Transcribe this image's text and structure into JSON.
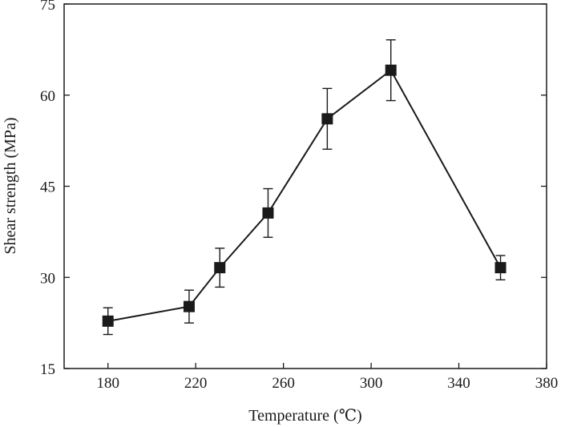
{
  "chart_data": {
    "type": "line",
    "xlabel": "Temperature (℃)",
    "ylabel": "Shear strength (MPa)",
    "xlim": [
      160,
      380
    ],
    "ylim": [
      15,
      75
    ],
    "xticks": [
      180,
      220,
      260,
      300,
      340,
      380
    ],
    "yticks": [
      15,
      30,
      45,
      60,
      75
    ],
    "grid": false,
    "marker": "square",
    "series": [
      {
        "x": [
          180,
          217,
          231,
          253,
          280,
          309,
          359
        ],
        "y": [
          22.8,
          25.2,
          31.6,
          40.6,
          56.1,
          64.1,
          31.6
        ],
        "error": [
          2.2,
          2.7,
          3.2,
          4.0,
          5.0,
          5.0,
          2.0
        ]
      }
    ]
  }
}
